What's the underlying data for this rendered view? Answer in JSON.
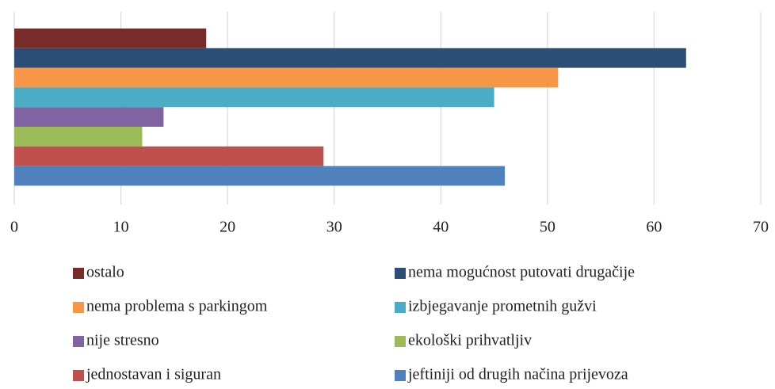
{
  "chart_data": {
    "type": "bar",
    "orientation": "horizontal",
    "categories": [
      null
    ],
    "series": [
      {
        "name": "ostalo",
        "color": "#772c2a",
        "values": [
          18
        ]
      },
      {
        "name": "nema mogućnost putovati drugačije",
        "color": "#2c4d75",
        "values": [
          63
        ]
      },
      {
        "name": "nema problema s parkingom",
        "color": "#f79646",
        "values": [
          51
        ]
      },
      {
        "name": "izbjegavanje prometnih gužvi",
        "color": "#4bacc6",
        "values": [
          45
        ]
      },
      {
        "name": "nije stresno",
        "color": "#8064a2",
        "values": [
          14
        ]
      },
      {
        "name": "ekološki prihvatljiv",
        "color": "#9bbb59",
        "values": [
          12
        ]
      },
      {
        "name": "jednostavan i siguran",
        "color": "#c0504d",
        "values": [
          29
        ]
      },
      {
        "name": "jeftiniji od drugih načina prijevoza",
        "color": "#4f81bd",
        "values": [
          46
        ]
      }
    ],
    "xlim": [
      0,
      70
    ],
    "xticks": [
      0,
      10,
      20,
      30,
      40,
      50,
      60,
      70
    ],
    "grid": true,
    "legend": "bottom"
  }
}
